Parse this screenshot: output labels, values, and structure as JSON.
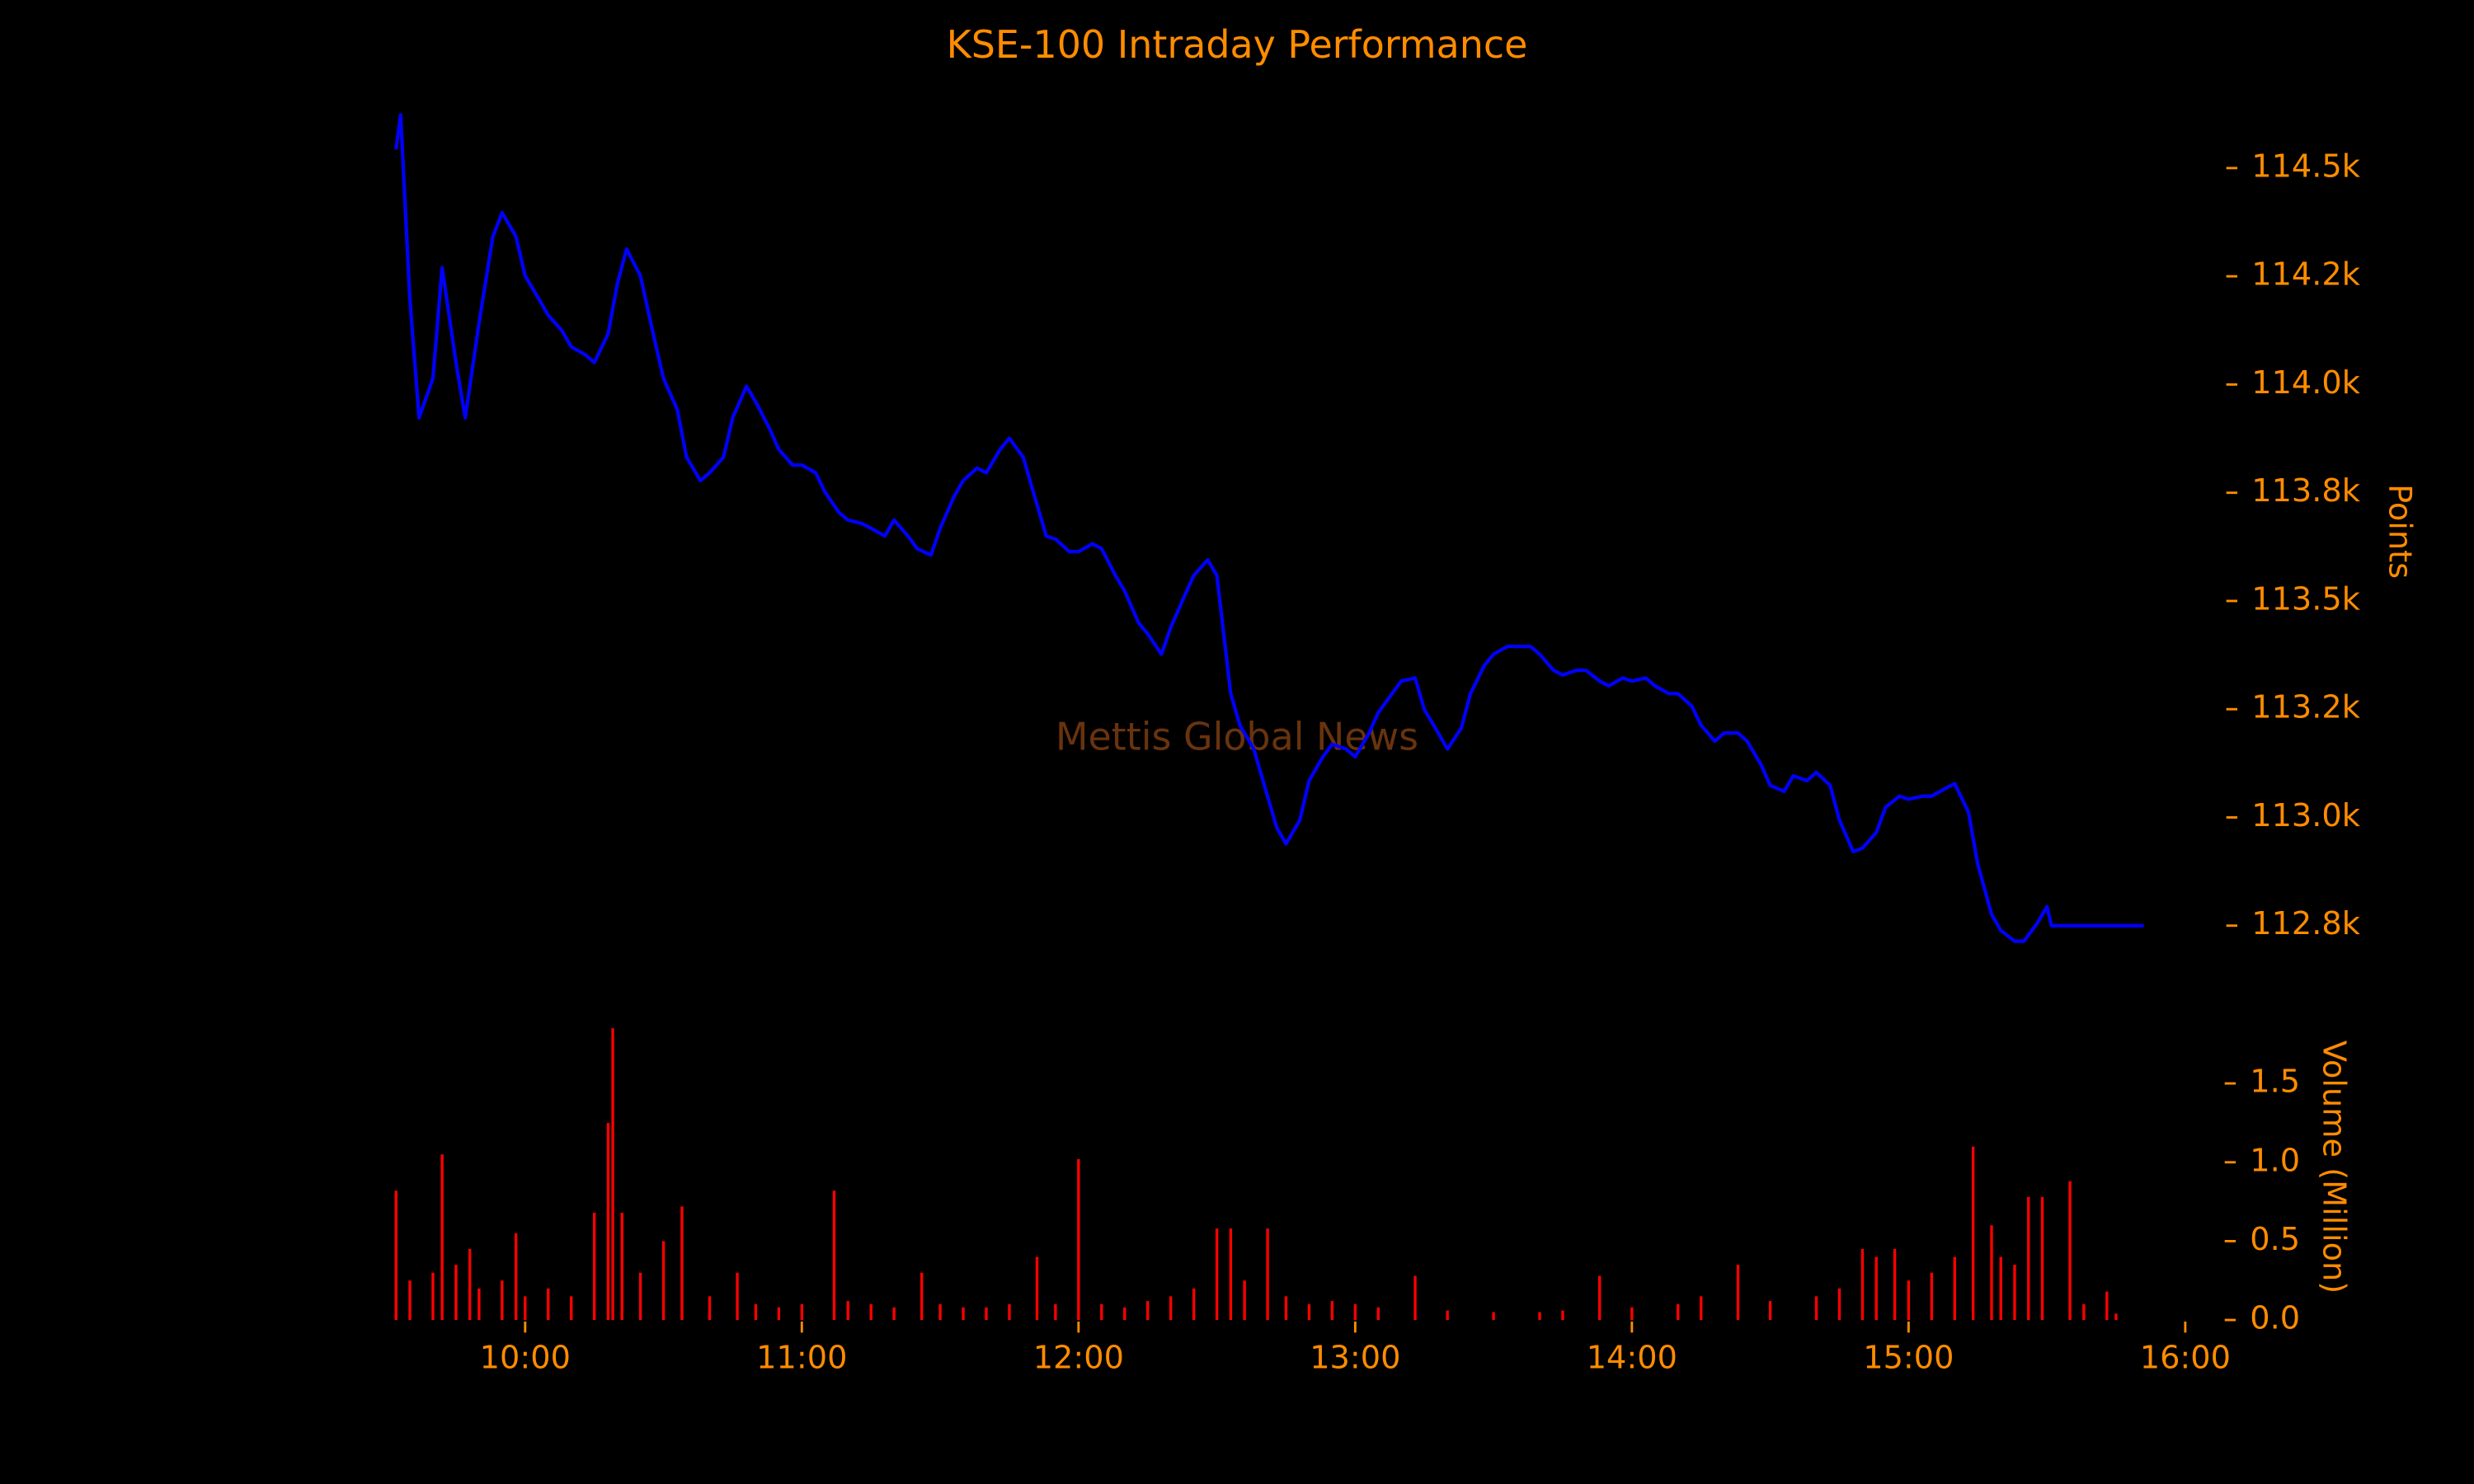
{
  "chart_data": [
    {
      "type": "line",
      "title": "KSE-100 Intraday Performance",
      "y_label": "Points",
      "watermark": "Mettis Global News",
      "xlim": [
        "09:32",
        "16:00"
      ],
      "x": [
        "09:32",
        "09:33",
        "09:35",
        "09:37",
        "09:40",
        "09:42",
        "09:45",
        "09:47",
        "09:50",
        "09:53",
        "09:55",
        "09:58",
        "10:00",
        "10:03",
        "10:05",
        "10:08",
        "10:10",
        "10:13",
        "10:15",
        "10:18",
        "10:20",
        "10:22",
        "10:25",
        "10:28",
        "10:30",
        "10:33",
        "10:35",
        "10:38",
        "10:40",
        "10:43",
        "10:45",
        "10:48",
        "10:50",
        "10:53",
        "10:55",
        "10:58",
        "11:00",
        "11:03",
        "11:05",
        "11:08",
        "11:10",
        "11:13",
        "11:15",
        "11:18",
        "11:20",
        "11:23",
        "11:25",
        "11:28",
        "11:30",
        "11:33",
        "11:35",
        "11:38",
        "11:40",
        "11:43",
        "11:45",
        "11:48",
        "11:50",
        "11:53",
        "11:55",
        "11:58",
        "12:00",
        "12:03",
        "12:05",
        "12:08",
        "12:10",
        "12:13",
        "12:15",
        "12:18",
        "12:20",
        "12:23",
        "12:25",
        "12:28",
        "12:30",
        "12:33",
        "12:35",
        "12:38",
        "12:40",
        "12:43",
        "12:45",
        "12:48",
        "12:50",
        "12:53",
        "12:55",
        "12:58",
        "13:00",
        "13:03",
        "13:05",
        "13:08",
        "13:10",
        "13:13",
        "13:15",
        "13:18",
        "13:20",
        "13:23",
        "13:25",
        "13:28",
        "13:30",
        "13:33",
        "13:35",
        "13:38",
        "13:40",
        "13:43",
        "13:45",
        "13:48",
        "13:50",
        "13:53",
        "13:55",
        "13:58",
        "14:00",
        "14:03",
        "14:05",
        "14:08",
        "14:10",
        "14:13",
        "14:15",
        "14:18",
        "14:20",
        "14:23",
        "14:25",
        "14:28",
        "14:30",
        "14:33",
        "14:35",
        "14:38",
        "14:40",
        "14:43",
        "14:45",
        "14:48",
        "14:50",
        "14:53",
        "14:55",
        "14:58",
        "15:00",
        "15:03",
        "15:05",
        "15:08",
        "15:10",
        "15:13",
        "15:15",
        "15:18",
        "15:20",
        "15:23",
        "15:25",
        "15:28",
        "15:30",
        "15:31",
        "15:51"
      ],
      "series": [
        {
          "name": "KSE-100",
          "color": "#0000ff",
          "values": [
            114543,
            114623,
            114197,
            113923,
            114014,
            114270,
            114051,
            113923,
            114142,
            114342,
            114397,
            114342,
            114251,
            114197,
            114160,
            114124,
            114087,
            114069,
            114051,
            114117,
            114233,
            114313,
            114251,
            114106,
            114014,
            113942,
            113832,
            113778,
            113796,
            113832,
            113923,
            113996,
            113960,
            113898,
            113850,
            113814,
            113814,
            113796,
            113752,
            113705,
            113687,
            113679,
            113668,
            113650,
            113687,
            113650,
            113621,
            113606,
            113668,
            113741,
            113778,
            113807,
            113796,
            113850,
            113876,
            113832,
            113759,
            113650,
            113643,
            113614,
            113614,
            113632,
            113621,
            113559,
            113523,
            113450,
            113424,
            113377,
            113439,
            113512,
            113559,
            113595,
            113559,
            113286,
            113213,
            113158,
            113085,
            112976,
            112939,
            112994,
            113085,
            113140,
            113169,
            113158,
            113140,
            113195,
            113242,
            113286,
            113315,
            113322,
            113249,
            113195,
            113158,
            113206,
            113286,
            113351,
            113377,
            113395,
            113395,
            113395,
            113377,
            113340,
            113329,
            113340,
            113340,
            113315,
            113304,
            113322,
            113315,
            113322,
            113304,
            113286,
            113286,
            113257,
            113213,
            113176,
            113195,
            113195,
            113176,
            113122,
            113074,
            113060,
            113096,
            113085,
            113104,
            113074,
            112994,
            112921,
            112929,
            112965,
            113023,
            113049,
            113042,
            113049,
            113049,
            113067,
            113078,
            113012,
            112892,
            112776,
            112739,
            112714,
            112714,
            112757,
            112794,
            112750,
            112750
          ]
        }
      ],
      "ylim": [
        112650,
        114650
      ],
      "yticks": [
        {
          "value": 112750,
          "label": "112.8k"
        },
        {
          "value": 113000,
          "label": "113.0k"
        },
        {
          "value": 113250,
          "label": "113.2k"
        },
        {
          "value": 113500,
          "label": "113.5k"
        },
        {
          "value": 113750,
          "label": "113.8k"
        },
        {
          "value": 114000,
          "label": "114.0k"
        },
        {
          "value": 114250,
          "label": "114.2k"
        },
        {
          "value": 114500,
          "label": "114.5k"
        }
      ]
    },
    {
      "type": "bar",
      "y_label": "Volume (Million)",
      "color": "#ff0000",
      "xlim": [
        "09:32",
        "16:00"
      ],
      "xticks": [
        "10:00",
        "11:00",
        "12:00",
        "13:00",
        "14:00",
        "15:00",
        "16:00"
      ],
      "x": [
        "09:32",
        "09:35",
        "09:40",
        "09:42",
        "09:45",
        "09:48",
        "09:50",
        "09:55",
        "09:58",
        "10:00",
        "10:05",
        "10:10",
        "10:15",
        "10:18",
        "10:19",
        "10:21",
        "10:25",
        "10:30",
        "10:34",
        "10:40",
        "10:46",
        "10:50",
        "10:55",
        "11:00",
        "11:07",
        "11:10",
        "11:15",
        "11:20",
        "11:26",
        "11:30",
        "11:35",
        "11:40",
        "11:45",
        "11:51",
        "11:55",
        "12:00",
        "12:05",
        "12:10",
        "12:15",
        "12:20",
        "12:25",
        "12:30",
        "12:33",
        "12:36",
        "12:41",
        "12:45",
        "12:50",
        "12:55",
        "13:00",
        "13:05",
        "13:13",
        "13:20",
        "13:30",
        "13:40",
        "13:45",
        "13:53",
        "14:00",
        "14:10",
        "14:15",
        "14:23",
        "14:30",
        "14:40",
        "14:45",
        "14:50",
        "14:53",
        "14:57",
        "15:00",
        "15:05",
        "15:10",
        "15:14",
        "15:18",
        "15:20",
        "15:23",
        "15:26",
        "15:29",
        "15:35",
        "15:38",
        "15:43",
        "15:45"
      ],
      "values": [
        0.82,
        0.25,
        0.3,
        1.05,
        0.35,
        0.45,
        0.2,
        0.25,
        0.55,
        0.15,
        0.2,
        0.15,
        0.68,
        1.25,
        1.85,
        0.68,
        0.3,
        0.5,
        0.72,
        0.15,
        0.3,
        0.1,
        0.08,
        0.1,
        0.82,
        0.12,
        0.1,
        0.08,
        0.3,
        0.1,
        0.08,
        0.08,
        0.1,
        0.4,
        0.1,
        1.02,
        0.1,
        0.08,
        0.12,
        0.15,
        0.2,
        0.58,
        0.58,
        0.25,
        0.58,
        0.15,
        0.1,
        0.12,
        0.1,
        0.08,
        0.28,
        0.06,
        0.05,
        0.05,
        0.06,
        0.28,
        0.08,
        0.1,
        0.15,
        0.35,
        0.12,
        0.15,
        0.2,
        0.45,
        0.4,
        0.45,
        0.25,
        0.3,
        0.4,
        1.1,
        0.6,
        0.4,
        0.35,
        0.78,
        0.78,
        0.88,
        0.1,
        0.18,
        0.04
      ],
      "ylim": [
        0,
        1.85
      ],
      "yticks": [
        {
          "value": 0,
          "label": "0.0"
        },
        0.5,
        {
          "value": 1,
          "label": "1.0"
        },
        1.5
      ]
    }
  ]
}
